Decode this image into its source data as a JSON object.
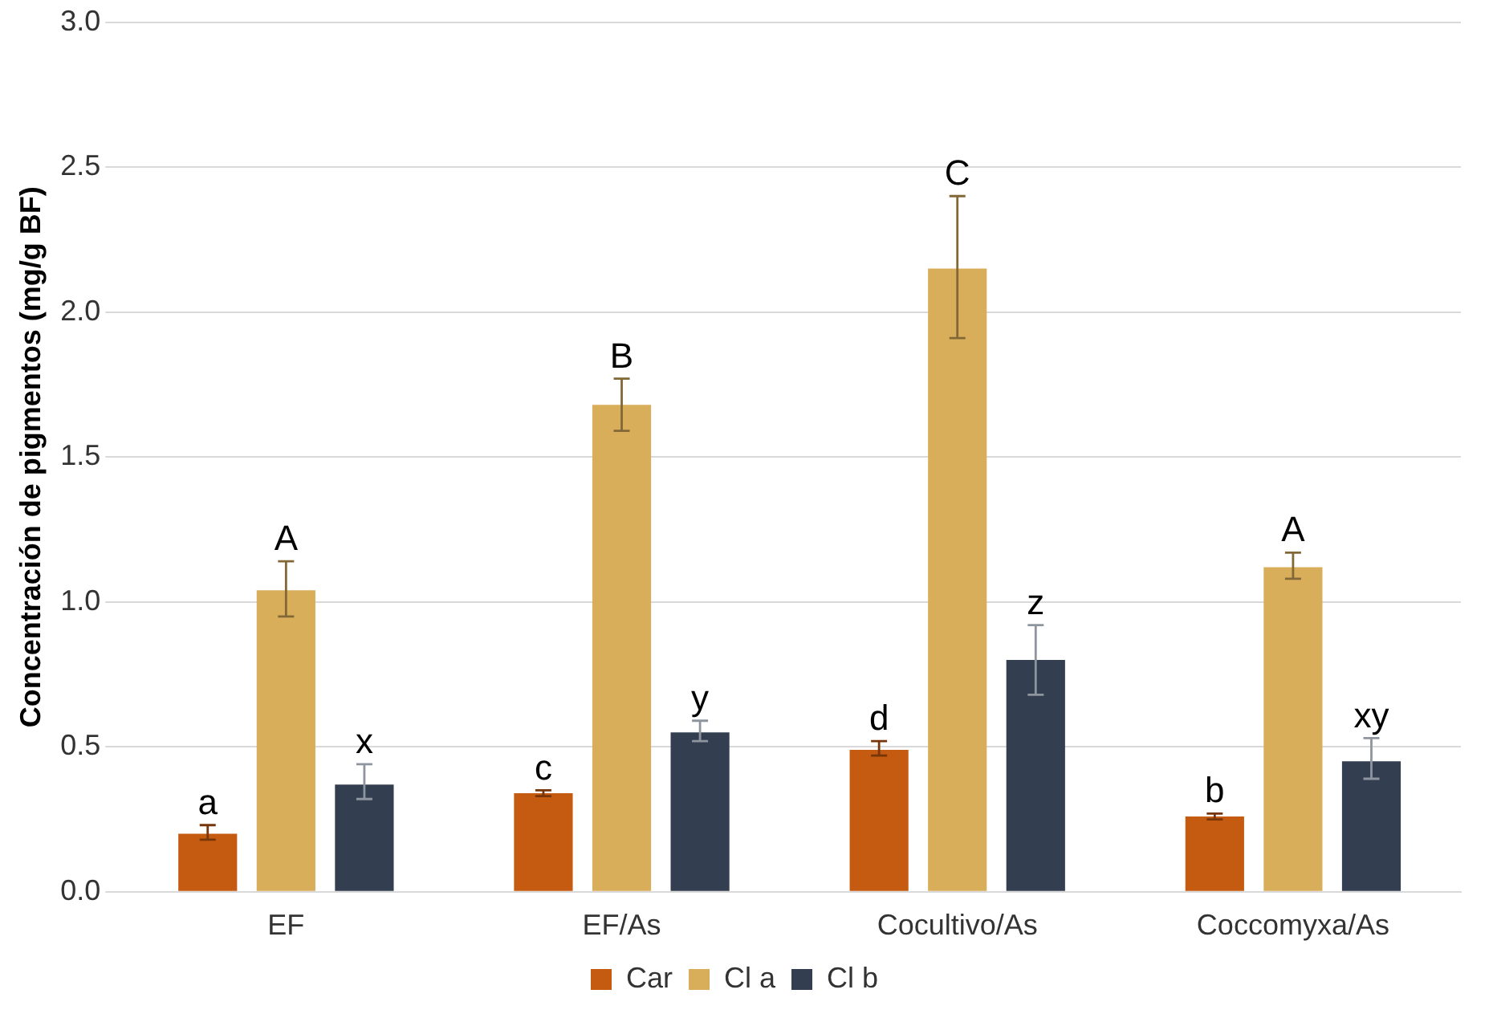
{
  "chart_data": {
    "type": "bar",
    "ylabel": "Concentración de pigmentos (mg/g BF)",
    "categories": [
      "EF",
      "EF/As",
      "Cocultivo/As",
      "Coccomyxa/As"
    ],
    "series": [
      {
        "name": "Car",
        "color": "#c55a11",
        "values": [
          0.2,
          0.34,
          0.49,
          0.26
        ],
        "errors": [
          [
            0.18,
            0.23
          ],
          [
            0.33,
            0.35
          ],
          [
            0.47,
            0.52
          ],
          [
            0.25,
            0.27
          ]
        ],
        "value_labels": [
          "a",
          "c",
          "d",
          "b"
        ]
      },
      {
        "name": "Cl a",
        "color": "#d9ae5b",
        "values": [
          1.04,
          1.68,
          2.15,
          1.12
        ],
        "errors": [
          [
            0.95,
            1.14
          ],
          [
            1.59,
            1.77
          ],
          [
            1.91,
            2.4
          ],
          [
            1.08,
            1.17
          ]
        ],
        "value_labels": [
          "A",
          "B",
          "C",
          "A"
        ]
      },
      {
        "name": "Cl b",
        "color": "#333f50",
        "values": [
          0.37,
          0.55,
          0.8,
          0.45
        ],
        "errors": [
          [
            0.32,
            0.44
          ],
          [
            0.52,
            0.59
          ],
          [
            0.68,
            0.92
          ],
          [
            0.39,
            0.53
          ]
        ],
        "value_labels": [
          "x",
          "y",
          "z",
          "xy"
        ]
      }
    ],
    "ylim": [
      0,
      3
    ],
    "yticks": [
      {
        "value": 0,
        "label": "0.0"
      },
      {
        "value": 0.5,
        "label": "0.5"
      },
      {
        "value": 1,
        "label": "1.0"
      },
      {
        "value": 1.5,
        "label": "1.5"
      },
      {
        "value": 2,
        "label": "2.0"
      },
      {
        "value": 2.5,
        "label": "2.5"
      },
      {
        "value": 3,
        "label": "3.0"
      }
    ],
    "grid": "y",
    "legend": "bottom"
  }
}
